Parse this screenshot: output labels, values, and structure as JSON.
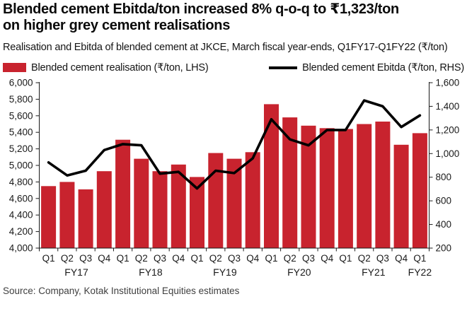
{
  "header": {
    "title_lines": [
      "Blended cement Ebitda/ton increased 8% q-o-q to ₹1,323/ton",
      "on higher grey cement realisations"
    ],
    "subtitle": "Realisation and Ebitda of blended cement at JKCE, March fiscal year-ends, Q1FY17-Q1FY22 (₹/ton)"
  },
  "legend": [
    {
      "label": "Blended cement realisation (₹/ton, LHS)",
      "type": "bar",
      "color": "#c8232e"
    },
    {
      "label": "Blended cement Ebitda (₹/ton, RHS)",
      "type": "line",
      "color": "#000000"
    }
  ],
  "source": "Source: Company, Kotak Institutional Equities estimates",
  "chart_data": {
    "type": "bar+line",
    "categories": [
      "Q1",
      "Q2",
      "Q3",
      "Q4",
      "Q1",
      "Q2",
      "Q3",
      "Q4",
      "Q1",
      "Q2",
      "Q3",
      "Q4",
      "Q1",
      "Q2",
      "Q3",
      "Q4",
      "Q1",
      "Q2",
      "Q3",
      "Q4",
      "Q1"
    ],
    "fiscal_years": [
      {
        "label": "FY17",
        "quarters": 4
      },
      {
        "label": "FY18",
        "quarters": 4
      },
      {
        "label": "FY19",
        "quarters": 4
      },
      {
        "label": "FY20",
        "quarters": 4
      },
      {
        "label": "FY21",
        "quarters": 4
      },
      {
        "label": "FY22",
        "quarters": 1
      }
    ],
    "series": [
      {
        "name": "Blended cement realisation (₹/ton, LHS)",
        "type": "bar",
        "axis": "left",
        "color": "#c8232e",
        "values": [
          4750,
          4800,
          4710,
          4930,
          5310,
          5080,
          4930,
          5010,
          4860,
          5150,
          5080,
          5160,
          5740,
          5580,
          5480,
          5450,
          5440,
          5500,
          5530,
          5250,
          5390
        ]
      },
      {
        "name": "Blended cement Ebitda (₹/ton, RHS)",
        "type": "line",
        "axis": "right",
        "color": "#000000",
        "values": [
          925,
          815,
          855,
          1030,
          1080,
          1070,
          830,
          845,
          705,
          855,
          835,
          960,
          1290,
          1120,
          1070,
          1200,
          1200,
          1450,
          1400,
          1225,
          1323
        ]
      }
    ],
    "left_axis": {
      "min": 4000,
      "max": 6000,
      "step": 200
    },
    "right_axis": {
      "min": 200,
      "max": 1600,
      "step": 200
    },
    "grid": false,
    "legend_position": "top"
  }
}
